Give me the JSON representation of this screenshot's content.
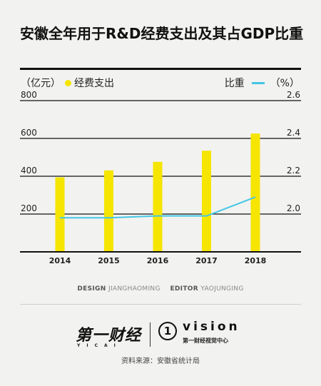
{
  "title": "安徽全年用于R&D经费支出及其占GDP比重",
  "legend": {
    "left_unit": "（亿元）",
    "left_series": "经费支出",
    "right_series": "比重",
    "right_unit": "（%）"
  },
  "credits": {
    "design_label": "DESIGN",
    "design_name": "JIANGHAOMING",
    "editor_label": "EDITOR",
    "editor_name": "YAOJUNGING"
  },
  "logo": {
    "cn": "第一财经",
    "cn_sub": "YICAI",
    "mark": "1",
    "vision": "vision",
    "vision_sub": "第一财经视觉中心"
  },
  "source": "资料来源：安徽省统计局",
  "colors": {
    "bar": "#f5e500",
    "line": "#43c6e6",
    "axis": "#111111"
  },
  "chart_data": {
    "type": "bar",
    "categories": [
      "2014",
      "2015",
      "2016",
      "2017",
      "2018"
    ],
    "series": [
      {
        "name": "经费支出",
        "type": "bar",
        "axis": "left",
        "values": [
          394,
          431,
          476,
          535,
          626
        ]
      },
      {
        "name": "比重",
        "type": "line",
        "axis": "right",
        "values": [
          1.98,
          1.98,
          1.99,
          1.99,
          2.09
        ]
      }
    ],
    "y_left": {
      "ticks": [
        "800",
        "600",
        "400",
        "200"
      ],
      "ylim": [
        0,
        800
      ]
    },
    "y_right": {
      "ticks": [
        "2.6",
        "2.4",
        "2.2",
        "2.0"
      ],
      "ylim": [
        1.8,
        2.6
      ]
    },
    "grid": true
  }
}
